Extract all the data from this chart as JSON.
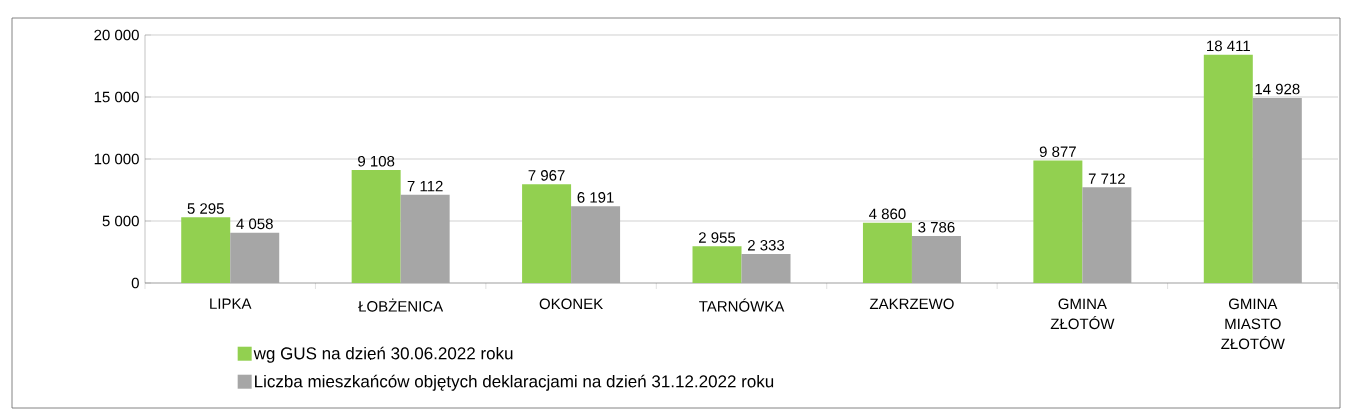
{
  "chart_data": {
    "type": "bar",
    "categories": [
      "LIPKA",
      "ŁOBŻENICA",
      "OKONEK",
      "TARNÓWKA",
      "ZAKRZEWO",
      "GMINA ZŁOTÓW",
      "GMINA MIASTO ZŁOTÓW"
    ],
    "series": [
      {
        "name": "wg GUS na dzień 30.06.2022 roku",
        "color": "#92d050",
        "values": [
          5295,
          9108,
          7967,
          2955,
          4860,
          9877,
          18411
        ],
        "value_labels": [
          "5 295",
          "9 108",
          "7 967",
          "2 955",
          "4 860",
          "9 877",
          "18 411"
        ]
      },
      {
        "name": "Liczba mieszkańców objętych deklaracjami na dzień 31.12.2022 roku",
        "color": "#a6a6a6",
        "values": [
          4058,
          7112,
          6191,
          2333,
          3786,
          7712,
          14928
        ],
        "value_labels": [
          "4 058",
          "7 112",
          "6 191",
          "2 333",
          "3 786",
          "7 712",
          "14 928"
        ]
      }
    ],
    "ylim": [
      0,
      20000
    ],
    "yticks": [
      {
        "value": 0,
        "label": "0"
      },
      {
        "value": 5000,
        "label": "5 000"
      },
      {
        "value": 10000,
        "label": "10 000"
      },
      {
        "value": 15000,
        "label": "15 000"
      },
      {
        "value": 20000,
        "label": "20 000"
      }
    ],
    "grid": "y",
    "legend": "bottom"
  }
}
